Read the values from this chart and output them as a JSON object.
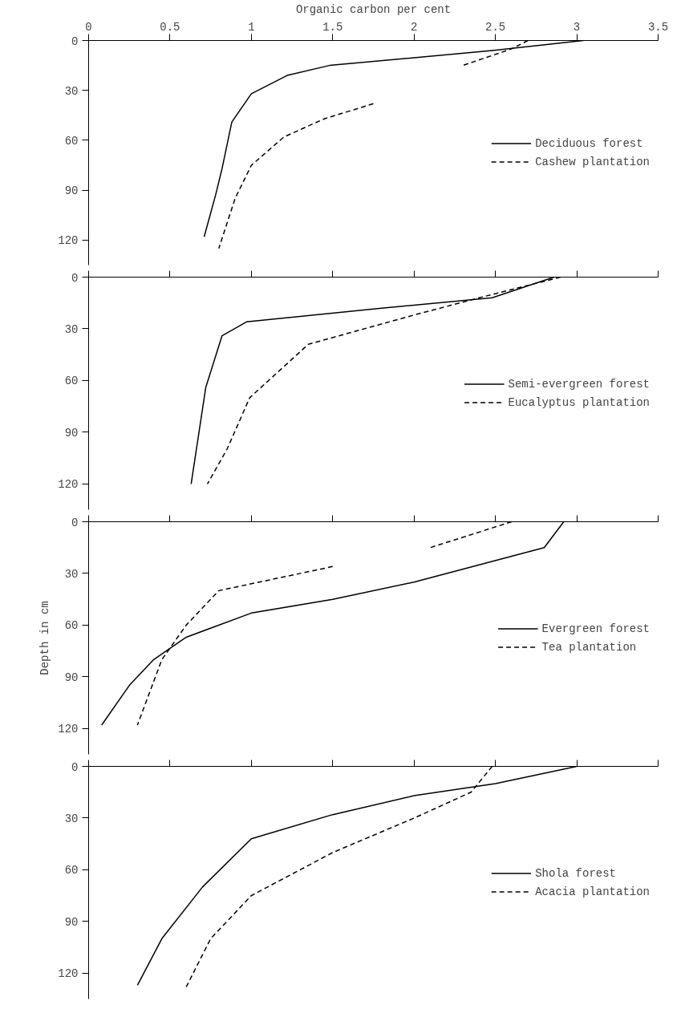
{
  "chart_data": [
    {
      "type": "line",
      "xlabel": "Organic carbon per cent",
      "xlim": [
        0,
        3.5
      ],
      "xticks": [
        0,
        0.5,
        1.0,
        1.5,
        2.0,
        2.5,
        3.0,
        3.5
      ],
      "ylim": [
        135,
        0
      ],
      "yticks": [
        0,
        30,
        60,
        90,
        120
      ],
      "grid": false,
      "legend": "right",
      "marker": "none",
      "series": [
        {
          "name": "Deciduous forest",
          "color": "#000000",
          "line_style": "solid",
          "x": [
            3.04,
            2.48,
            1.48,
            1.22,
            1.0,
            0.88,
            0.82,
            0.78,
            0.71
          ],
          "values": [
            0,
            6,
            15,
            21,
            32,
            49,
            77,
            93,
            118
          ]
        },
        {
          "name": "Cashew plantation",
          "color": "#000000",
          "line_style": "dashed",
          "x": [
            2.7,
            2.6,
            2.45,
            2.3,
            null,
            1.75,
            1.45,
            1.2,
            1.0,
            0.9,
            0.8
          ],
          "values": [
            0,
            5,
            10,
            15,
            null,
            38,
            47,
            58,
            75,
            95,
            125
          ]
        }
      ]
    },
    {
      "type": "line",
      "xlim": [
        0,
        3.5
      ],
      "xticks": [
        0,
        0.5,
        1.0,
        1.5,
        2.0,
        2.5,
        3.0,
        3.5
      ],
      "ylim": [
        135,
        0
      ],
      "yticks": [
        0,
        30,
        60,
        90,
        120
      ],
      "tick_labels": "y",
      "grid": false,
      "legend": "right",
      "marker": "none",
      "series": [
        {
          "name": "Semi-evergreen forest",
          "color": "#000000",
          "line_style": "solid",
          "x": [
            2.86,
            2.48,
            1.8,
            0.97,
            0.82,
            0.72,
            0.63
          ],
          "values": [
            0,
            12,
            18,
            26,
            34,
            64,
            120
          ]
        },
        {
          "name": "Eucalyptus plantation",
          "color": "#000000",
          "line_style": "dashed",
          "x": [
            2.9,
            2.4,
            2.0,
            1.35,
            0.99,
            0.85,
            0.73
          ],
          "values": [
            0,
            12,
            22,
            39,
            70,
            100,
            120
          ]
        }
      ]
    },
    {
      "type": "line",
      "ylabel": "Depth in cm",
      "xlim": [
        0,
        3.5
      ],
      "xticks": [
        0,
        0.5,
        1.0,
        1.5,
        2.0,
        2.5,
        3.0,
        3.5
      ],
      "ylim": [
        135,
        0
      ],
      "yticks": [
        0,
        30,
        60,
        90,
        120
      ],
      "tick_labels": "y",
      "grid": false,
      "legend": "right",
      "marker": "none",
      "series": [
        {
          "name": "Evergreen forest",
          "color": "#000000",
          "line_style": "solid",
          "x": [
            2.92,
            2.8,
            2.0,
            1.5,
            1.0,
            0.6,
            0.4,
            0.25,
            0.08
          ],
          "values": [
            0,
            15,
            35,
            45,
            53,
            67,
            80,
            95,
            118
          ]
        },
        {
          "name": "Tea plantation",
          "color": "#000000",
          "line_style": "dashed",
          "x": [
            2.6,
            2.1,
            null,
            1.5,
            0.8,
            0.6,
            0.45,
            0.3
          ],
          "values": [
            0,
            15,
            null,
            26,
            40,
            60,
            80,
            118
          ]
        }
      ]
    },
    {
      "type": "line",
      "xlim": [
        0,
        3.5
      ],
      "xticks": [
        0,
        0.5,
        1.0,
        1.5,
        2.0,
        2.5,
        3.0,
        3.5
      ],
      "ylim": [
        135,
        0
      ],
      "yticks": [
        0,
        30,
        60,
        90,
        120
      ],
      "tick_labels": "y",
      "grid": false,
      "legend": "right",
      "marker": "none",
      "series": [
        {
          "name": "Shola forest",
          "color": "#000000",
          "line_style": "solid",
          "x": [
            3.0,
            2.5,
            2.0,
            1.5,
            1.0,
            0.7,
            0.45,
            0.3
          ],
          "values": [
            0,
            10,
            17,
            28,
            42,
            70,
            100,
            127
          ]
        },
        {
          "name": "Acacia plantation",
          "color": "#000000",
          "line_style": "dashed",
          "x": [
            2.48,
            2.35,
            2.0,
            1.5,
            1.0,
            0.75,
            0.6
          ],
          "values": [
            0,
            15,
            30,
            50,
            75,
            100,
            128
          ]
        }
      ]
    }
  ]
}
